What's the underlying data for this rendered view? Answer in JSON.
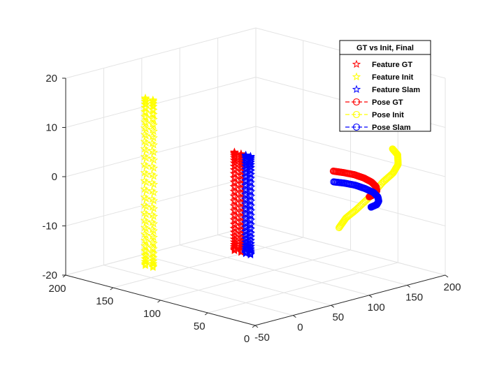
{
  "chart_data": {
    "type": "scatter",
    "title": "",
    "xlabel": "",
    "ylabel": "",
    "zlabel": "",
    "projection": "3d",
    "grid": true,
    "xlim": [
      -50,
      200
    ],
    "ylim": [
      0,
      200
    ],
    "zlim": [
      -20,
      20
    ],
    "x_ticks": [
      "-50",
      "0",
      "50",
      "100",
      "150",
      "200"
    ],
    "y_ticks": [
      "0",
      "50",
      "100",
      "150",
      "200"
    ],
    "z_ticks": [
      "-20",
      "-10",
      "0",
      "10",
      "20"
    ],
    "legend": {
      "title": "GT vs Init, Final",
      "position": "top-right",
      "entries": [
        {
          "label": "Feature GT",
          "color": "#ff0000",
          "marker": "star",
          "line": "none"
        },
        {
          "label": "Feature Init",
          "color": "#ffff00",
          "marker": "star",
          "line": "none"
        },
        {
          "label": "Feature Slam",
          "color": "#0000ff",
          "marker": "star",
          "line": "none"
        },
        {
          "label": "Pose GT",
          "color": "#ff0000",
          "marker": "circle",
          "line": "dashed"
        },
        {
          "label": "Pose Init",
          "color": "#ffff00",
          "marker": "circle",
          "line": "dashed"
        },
        {
          "label": "Pose Slam",
          "color": "#0000ff",
          "marker": "circle",
          "line": "dashed"
        }
      ]
    },
    "series": [
      {
        "name": "Feature GT",
        "kind": "rings",
        "color": "#ff0000",
        "marker": "star",
        "rings": [
          {
            "x": 0,
            "y": 55,
            "zc": 0,
            "r": 10
          },
          {
            "x": 0,
            "y": 62,
            "zc": 0,
            "r": 10
          }
        ]
      },
      {
        "name": "Feature Init",
        "kind": "rings",
        "color": "#ffff00",
        "marker": "star",
        "rings": [
          {
            "x": -10,
            "y": 148,
            "zc": 0,
            "r": 17
          },
          {
            "x": -10,
            "y": 140,
            "zc": 0,
            "r": 17
          }
        ]
      },
      {
        "name": "Feature Slam",
        "kind": "rings",
        "color": "#0000ff",
        "marker": "star",
        "rings": [
          {
            "x": 0,
            "y": 50,
            "zc": 0,
            "r": 10
          },
          {
            "x": 0,
            "y": 45,
            "zc": 0,
            "r": 10
          }
        ]
      },
      {
        "name": "Pose GT",
        "kind": "arc",
        "color": "#ff0000",
        "marker": "circle",
        "points": [
          [
            100,
            0,
            0
          ],
          [
            110,
            2,
            0
          ],
          [
            120,
            8,
            0
          ],
          [
            130,
            17,
            0
          ],
          [
            138,
            28,
            0
          ],
          [
            143,
            40,
            0
          ],
          [
            145,
            52,
            0
          ],
          [
            143,
            62,
            0
          ],
          [
            140,
            70,
            0
          ]
        ]
      },
      {
        "name": "Pose Init",
        "kind": "arc",
        "color": "#ffff00",
        "marker": "circle",
        "points": [
          [
            112,
            -15,
            10
          ],
          [
            125,
            -10,
            8
          ],
          [
            138,
            0,
            5
          ],
          [
            150,
            15,
            2
          ],
          [
            158,
            32,
            -1
          ],
          [
            160,
            48,
            -5
          ],
          [
            158,
            60,
            -8
          ],
          [
            154,
            68,
            -10
          ],
          [
            150,
            72,
            -12
          ]
        ]
      },
      {
        "name": "Pose Slam",
        "kind": "arc",
        "color": "#0000ff",
        "marker": "circle",
        "points": [
          [
            100,
            -2,
            -2
          ],
          [
            110,
            0,
            -2
          ],
          [
            120,
            6,
            -2
          ],
          [
            130,
            15,
            -2
          ],
          [
            138,
            26,
            -2
          ],
          [
            142,
            38,
            -2
          ],
          [
            144,
            50,
            -2
          ],
          [
            142,
            60,
            -2
          ],
          [
            138,
            68,
            -2
          ]
        ]
      }
    ]
  }
}
